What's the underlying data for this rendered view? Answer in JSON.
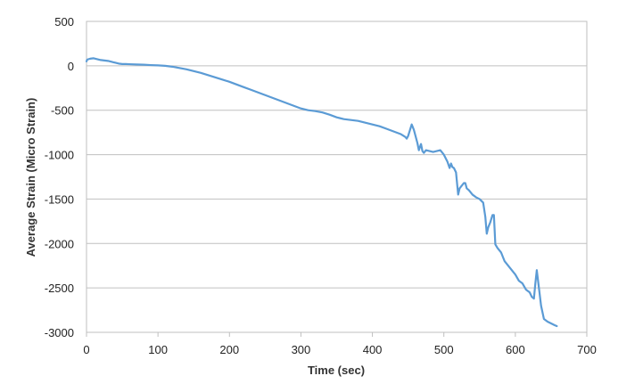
{
  "chart_data": {
    "type": "line",
    "title": "",
    "xlabel": "Time (sec)",
    "ylabel": "Average Strain (Micro Strain)",
    "xlim": [
      0,
      700
    ],
    "ylim": [
      -3000,
      500
    ],
    "x_ticks": [
      0,
      100,
      200,
      300,
      400,
      500,
      600,
      700
    ],
    "y_ticks": [
      500,
      0,
      -500,
      -1000,
      -1500,
      -2000,
      -2500,
      -3000
    ],
    "x_tick_labels": [
      "0",
      "100",
      "200",
      "300",
      "400",
      "500",
      "600",
      "700"
    ],
    "y_tick_labels": [
      "500",
      "0",
      "-500",
      "-1000",
      "-1500",
      "-2000",
      "-2500",
      "-3000"
    ],
    "grid": "horizontal",
    "legend": "none",
    "line_color": "#5B9BD5",
    "series": [
      {
        "x": [
          0,
          1,
          5,
          10,
          15,
          20,
          25,
          30,
          35,
          40,
          45,
          50,
          55,
          60,
          70,
          80,
          90,
          100,
          110,
          120,
          130,
          140,
          150,
          160,
          170,
          180,
          190,
          200,
          210,
          220,
          230,
          240,
          250,
          260,
          270,
          280,
          290,
          300,
          310,
          320,
          330,
          340,
          350,
          360,
          370,
          380,
          390,
          400,
          410,
          420,
          430,
          440,
          446,
          448,
          450,
          455,
          458,
          460,
          463,
          465,
          468,
          470,
          472,
          475,
          480,
          485,
          490,
          495,
          500,
          505,
          508,
          510,
          512,
          514,
          517,
          520,
          522,
          525,
          528,
          530,
          532,
          535,
          540,
          545,
          550,
          555,
          558,
          560,
          562,
          565,
          568,
          570,
          572,
          575,
          580,
          585,
          590,
          595,
          600,
          605,
          610,
          615,
          620,
          623,
          626,
          628,
          630,
          633,
          636,
          640,
          645,
          650,
          655,
          658
        ],
        "values": [
          50,
          70,
          80,
          85,
          75,
          65,
          60,
          55,
          45,
          35,
          25,
          20,
          20,
          18,
          15,
          12,
          8,
          5,
          0,
          -10,
          -25,
          -40,
          -60,
          -80,
          -105,
          -130,
          -155,
          -180,
          -210,
          -240,
          -270,
          -300,
          -330,
          -360,
          -390,
          -420,
          -450,
          -480,
          -500,
          -510,
          -525,
          -550,
          -580,
          -600,
          -610,
          -620,
          -640,
          -660,
          -680,
          -710,
          -740,
          -770,
          -800,
          -820,
          -790,
          -660,
          -720,
          -780,
          -870,
          -950,
          -880,
          -960,
          -980,
          -950,
          -960,
          -970,
          -960,
          -950,
          -1000,
          -1080,
          -1150,
          -1100,
          -1140,
          -1150,
          -1200,
          -1450,
          -1380,
          -1350,
          -1320,
          -1320,
          -1380,
          -1400,
          -1450,
          -1480,
          -1500,
          -1540,
          -1700,
          -1890,
          -1820,
          -1760,
          -1680,
          -1680,
          -2010,
          -2050,
          -2100,
          -2200,
          -2250,
          -2300,
          -2350,
          -2420,
          -2450,
          -2520,
          -2550,
          -2600,
          -2620,
          -2450,
          -2300,
          -2500,
          -2700,
          -2850,
          -2880,
          -2900,
          -2920,
          -2930
        ]
      }
    ]
  }
}
